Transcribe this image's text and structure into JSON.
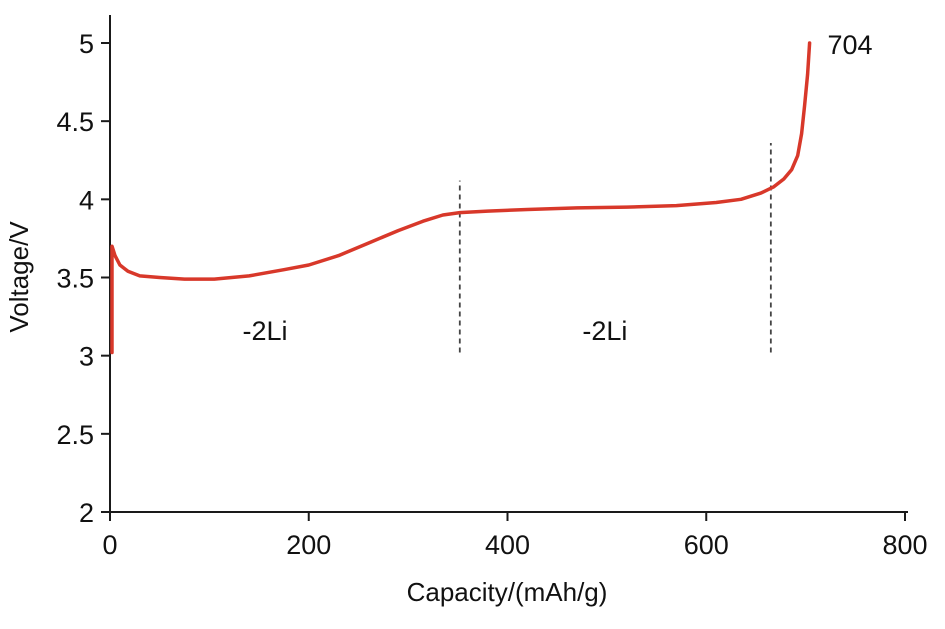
{
  "chart_data": {
    "type": "line",
    "title": "",
    "xlabel": "Capacity/(mAh/g)",
    "ylabel": "Voltage/V",
    "xlim": [
      0,
      800
    ],
    "ylim": [
      2,
      5
    ],
    "grid": false,
    "legend": "none",
    "xticks": [
      {
        "value": 0,
        "label": "0"
      },
      {
        "value": 200,
        "label": "200"
      },
      {
        "value": 400,
        "label": "400"
      },
      {
        "value": 600,
        "label": "600"
      },
      {
        "value": 800,
        "label": "800"
      }
    ],
    "yticks": [
      {
        "value": 2,
        "label": "2"
      },
      {
        "value": 2.5,
        "label": "2.5"
      },
      {
        "value": 3,
        "label": "3"
      },
      {
        "value": 3.5,
        "label": "3.5"
      },
      {
        "value": 4,
        "label": "4"
      },
      {
        "value": 4.5,
        "label": "4.5"
      },
      {
        "value": 5,
        "label": "5"
      }
    ],
    "series": [
      {
        "name": "charge-curve",
        "color": "#d8382a",
        "points": [
          [
            2,
            3.02
          ],
          [
            2,
            3.7
          ],
          [
            5,
            3.64
          ],
          [
            10,
            3.58
          ],
          [
            18,
            3.54
          ],
          [
            30,
            3.51
          ],
          [
            50,
            3.5
          ],
          [
            75,
            3.49
          ],
          [
            105,
            3.49
          ],
          [
            140,
            3.51
          ],
          [
            175,
            3.55
          ],
          [
            200,
            3.58
          ],
          [
            230,
            3.64
          ],
          [
            260,
            3.72
          ],
          [
            290,
            3.8
          ],
          [
            315,
            3.86
          ],
          [
            335,
            3.9
          ],
          [
            352,
            3.915
          ],
          [
            380,
            3.925
          ],
          [
            420,
            3.935
          ],
          [
            470,
            3.945
          ],
          [
            520,
            3.95
          ],
          [
            570,
            3.96
          ],
          [
            610,
            3.98
          ],
          [
            635,
            4.0
          ],
          [
            655,
            4.04
          ],
          [
            668,
            4.08
          ],
          [
            678,
            4.13
          ],
          [
            686,
            4.19
          ],
          [
            692,
            4.28
          ],
          [
            696,
            4.42
          ],
          [
            699,
            4.6
          ],
          [
            702,
            4.8
          ],
          [
            704,
            5.0
          ]
        ]
      }
    ],
    "dashed_lines": [
      {
        "x": 352,
        "y_from": 3.02,
        "y_to": 4.12
      },
      {
        "x": 665,
        "y_from": 3.02,
        "y_to": 4.36
      }
    ],
    "annotations": [
      {
        "id": "li-loss-1",
        "text": "-2Li",
        "x": 156,
        "y": 3.1,
        "anchor": "middle"
      },
      {
        "id": "li-loss-2",
        "text": "-2Li",
        "x": 498,
        "y": 3.1,
        "anchor": "middle"
      },
      {
        "id": "end-capacity",
        "text": "704",
        "x": 722,
        "y": 4.93,
        "anchor": "start"
      }
    ]
  }
}
